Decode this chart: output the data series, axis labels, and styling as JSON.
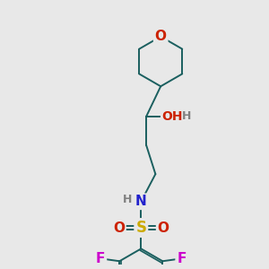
{
  "background_color": "#e8e8e8",
  "atom_colors": {
    "O": "#cc2200",
    "N": "#2222cc",
    "S": "#ccaa00",
    "F": "#cc00cc",
    "C": "#1a5f5f",
    "H": "#808080"
  },
  "bond_color": "#1a5f5f",
  "bond_lw": 1.4,
  "figsize": [
    3.0,
    3.0
  ],
  "dpi": 100
}
